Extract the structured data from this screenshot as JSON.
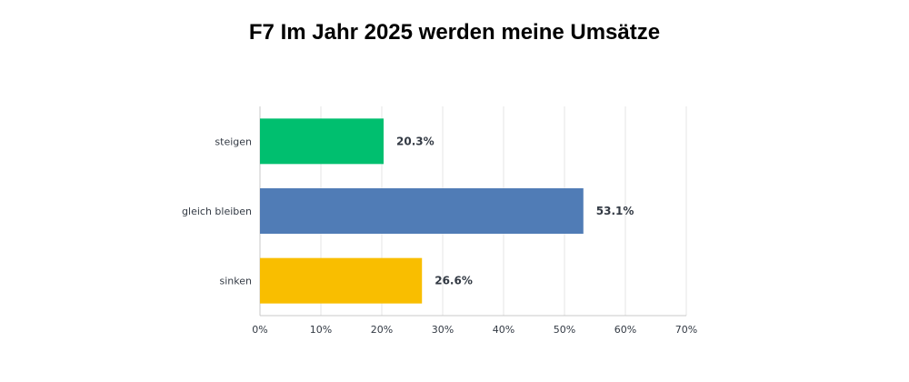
{
  "chart_data": {
    "type": "bar",
    "orientation": "horizontal",
    "title": "F7 Im Jahr 2025 werden meine Umsätze",
    "categories": [
      "steigen",
      "gleich bleiben",
      "sinken"
    ],
    "values": [
      20.3,
      53.1,
      26.6
    ],
    "value_labels": [
      "20.3%",
      "53.1%",
      "26.6%"
    ],
    "colors": [
      "#00bf6f",
      "#507cb6",
      "#f9be00"
    ],
    "xlim": [
      0,
      70
    ],
    "x_ticks": [
      0,
      10,
      20,
      30,
      40,
      50,
      60,
      70
    ],
    "x_tick_labels": [
      "0%",
      "10%",
      "20%",
      "30%",
      "40%",
      "50%",
      "60%",
      "70%"
    ],
    "xlabel": "",
    "ylabel": "",
    "grid": true,
    "legend": "none"
  }
}
